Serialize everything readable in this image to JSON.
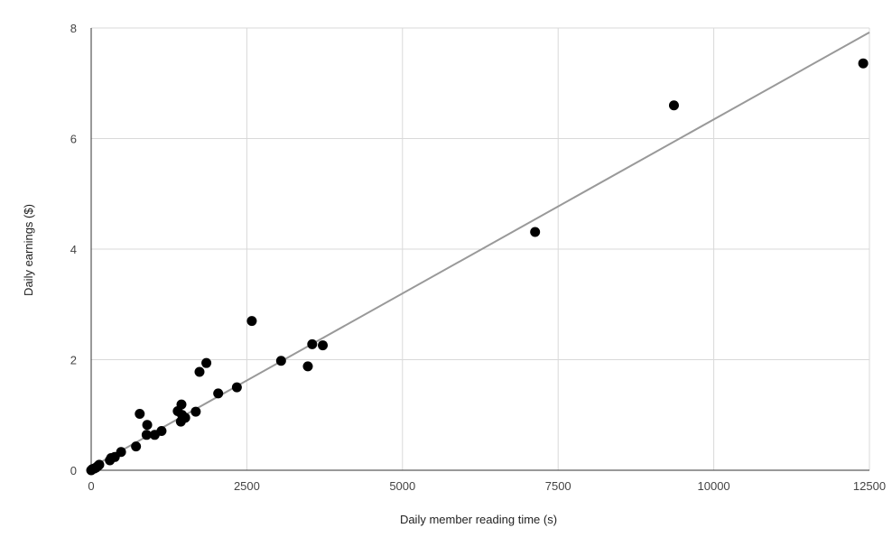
{
  "chart_data": {
    "type": "scatter",
    "title": "",
    "xlabel": "Daily member reading time (s)",
    "ylabel": "Daily earnings ($)",
    "xlim": [
      0,
      12500
    ],
    "ylim": [
      0,
      8
    ],
    "x_ticks": [
      0,
      2500,
      5000,
      7500,
      10000,
      12500
    ],
    "y_ticks": [
      0,
      2,
      4,
      6,
      8
    ],
    "x_tick_labels": [
      "0",
      "2500",
      "5000",
      "7500",
      "10000",
      "12500"
    ],
    "y_tick_labels": [
      "0",
      "2",
      "4",
      "6",
      "8"
    ],
    "grid": true,
    "legend": "none",
    "point_color": "#000000",
    "trendline_color": "#999999",
    "trendline": {
      "type": "linear",
      "x": [
        0,
        12500
      ],
      "y": [
        0.05,
        7.92
      ]
    },
    "points": [
      {
        "x": 0,
        "y": 0.0
      },
      {
        "x": 20,
        "y": 0.02
      },
      {
        "x": 50,
        "y": 0.03
      },
      {
        "x": 80,
        "y": 0.05
      },
      {
        "x": 110,
        "y": 0.08
      },
      {
        "x": 130,
        "y": 0.1
      },
      {
        "x": 300,
        "y": 0.18
      },
      {
        "x": 320,
        "y": 0.22
      },
      {
        "x": 380,
        "y": 0.24
      },
      {
        "x": 480,
        "y": 0.33
      },
      {
        "x": 720,
        "y": 0.43
      },
      {
        "x": 780,
        "y": 1.02
      },
      {
        "x": 890,
        "y": 0.64
      },
      {
        "x": 900,
        "y": 0.82
      },
      {
        "x": 1020,
        "y": 0.64
      },
      {
        "x": 1130,
        "y": 0.71
      },
      {
        "x": 1390,
        "y": 1.07
      },
      {
        "x": 1440,
        "y": 0.88
      },
      {
        "x": 1450,
        "y": 1.19
      },
      {
        "x": 1460,
        "y": 1.0
      },
      {
        "x": 1510,
        "y": 0.95
      },
      {
        "x": 1680,
        "y": 1.06
      },
      {
        "x": 1740,
        "y": 1.78
      },
      {
        "x": 1850,
        "y": 1.94
      },
      {
        "x": 2040,
        "y": 1.39
      },
      {
        "x": 2340,
        "y": 1.5
      },
      {
        "x": 2580,
        "y": 2.7
      },
      {
        "x": 3050,
        "y": 1.98
      },
      {
        "x": 3480,
        "y": 1.88
      },
      {
        "x": 3550,
        "y": 2.28
      },
      {
        "x": 3720,
        "y": 2.26
      },
      {
        "x": 7130,
        "y": 4.31
      },
      {
        "x": 9360,
        "y": 6.6
      },
      {
        "x": 12400,
        "y": 7.36
      }
    ]
  }
}
